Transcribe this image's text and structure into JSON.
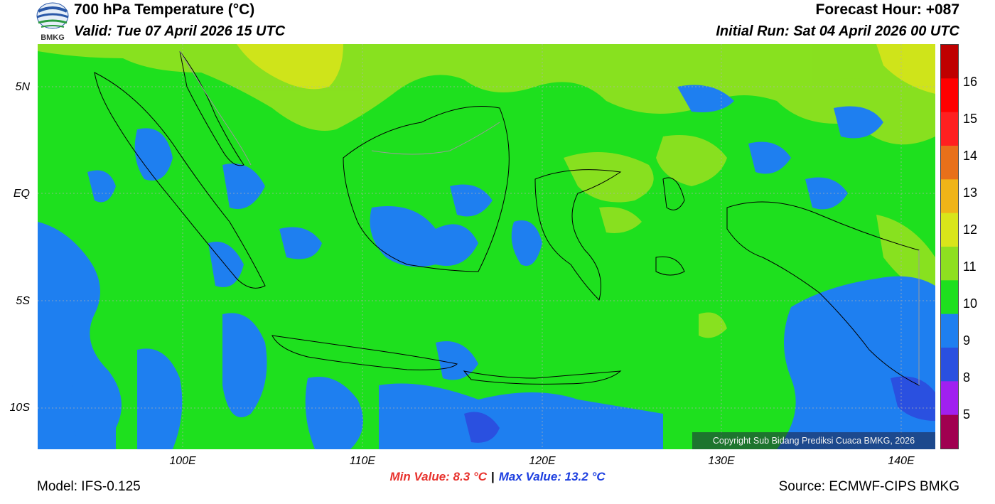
{
  "header": {
    "title": "700 hPa Temperature (°C)",
    "valid": "Valid: Tue 07 April 2026 15 UTC",
    "forecast_hour": "Forecast Hour: +087",
    "initial_run": "Initial Run: Sat 04 April 2026 00 UTC"
  },
  "logo": {
    "text": "BMKG"
  },
  "map": {
    "lat_labels": [
      "5N",
      "EQ",
      "5S",
      "10S"
    ],
    "lon_labels": [
      "100E",
      "110E",
      "120E",
      "130E",
      "140E"
    ],
    "copyright": "Copyright Sub Bidang Prediksi Cuaca BMKG, 2026"
  },
  "colorbar": {
    "labels": [
      "16",
      "15",
      "14",
      "13",
      "12",
      "11",
      "10",
      "9",
      "8",
      "5"
    ],
    "colors": [
      "#bf0000",
      "#ff0000",
      "#ff2020",
      "#e8701a",
      "#f0b418",
      "#d9e51a",
      "#8ee020",
      "#1ee01e",
      "#1e7ff0",
      "#2a50e0",
      "#a020f0",
      "#a00050"
    ]
  },
  "footer": {
    "min_value": "Min Value: 8.3 °C",
    "separator": "|",
    "max_value": "Max Value: 13.2 °C",
    "model": "Model: IFS-0.125",
    "source": "Source: ECMWF-CIPS BMKG"
  }
}
